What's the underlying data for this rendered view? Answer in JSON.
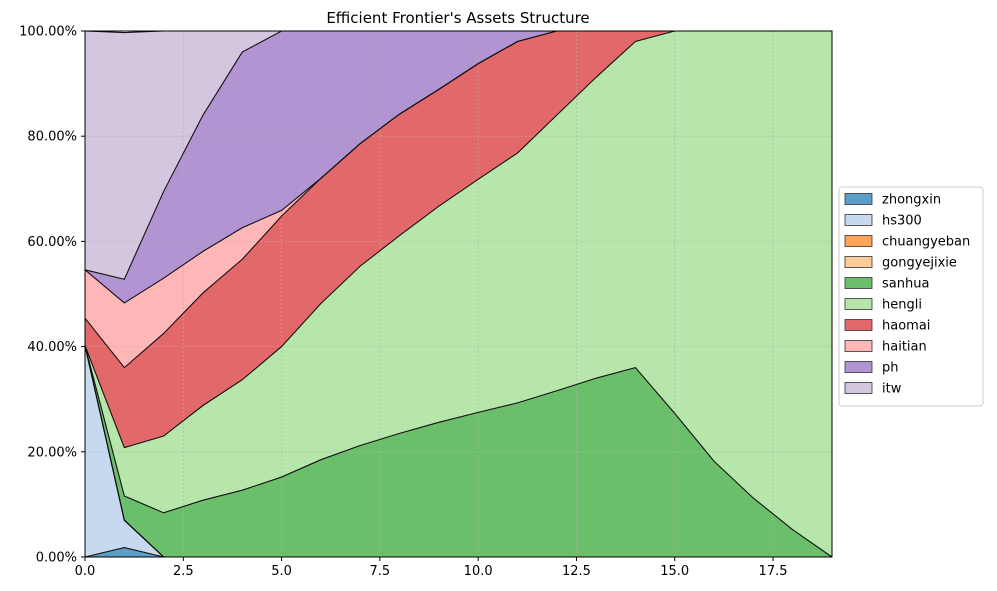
{
  "chart_data": {
    "type": "area",
    "stacked": true,
    "normalized": true,
    "title": "Efficient Frontier's Assets Structure",
    "xlabel": "",
    "ylabel": "",
    "xlim": [
      0,
      19
    ],
    "ylim": [
      0,
      100
    ],
    "x_ticks": [
      0.0,
      2.5,
      5.0,
      7.5,
      10.0,
      12.5,
      15.0,
      17.5
    ],
    "x_tick_labels": [
      "0.0",
      "2.5",
      "5.0",
      "7.5",
      "10.0",
      "12.5",
      "15.0",
      "17.5"
    ],
    "y_ticks": [
      0,
      20,
      40,
      60,
      80,
      100
    ],
    "y_tick_labels": [
      "0.00%",
      "20.00%",
      "40.00%",
      "60.00%",
      "80.00%",
      "100.00%"
    ],
    "grid": true,
    "legend_position": "right",
    "x": [
      0,
      1,
      2,
      3,
      4,
      5,
      6,
      7,
      8,
      9,
      10,
      11,
      12,
      13,
      14,
      15,
      16,
      17,
      18,
      19
    ],
    "series": [
      {
        "name": "zhongxin",
        "color": "#5b9ec9",
        "values": [
          0,
          1.8,
          0,
          0,
          0,
          0,
          0,
          0,
          0,
          0,
          0,
          0,
          0,
          0,
          0,
          0,
          0,
          0,
          0,
          0
        ]
      },
      {
        "name": "hs300",
        "color": "#c6d9ef",
        "values": [
          40.2,
          5.2,
          0,
          0,
          0,
          0,
          0,
          0,
          0,
          0,
          0,
          0,
          0,
          0,
          0,
          0,
          0,
          0,
          0,
          0
        ]
      },
      {
        "name": "chuangyeban",
        "color": "#ffa55a",
        "values": [
          0,
          0,
          0,
          0,
          0,
          0,
          0,
          0,
          0,
          0,
          0,
          0,
          0,
          0,
          0,
          0,
          0,
          0,
          0,
          0
        ]
      },
      {
        "name": "gongyejixie",
        "color": "#ffcc99",
        "values": [
          0,
          0,
          0,
          0,
          0,
          0,
          0,
          0,
          0,
          0,
          0,
          0,
          0,
          0,
          0,
          0,
          0,
          0,
          0,
          0
        ]
      },
      {
        "name": "sanhua",
        "color": "#6bbf6b",
        "values": [
          0,
          4.6,
          8.4,
          10.8,
          12.7,
          15.2,
          18.5,
          21.2,
          23.5,
          25.6,
          27.5,
          29.3,
          31.6,
          34.0,
          36.0,
          27.3,
          18.2,
          11.2,
          5.2,
          0
        ]
      },
      {
        "name": "hengli",
        "color": "#b7e6aa",
        "values": [
          0,
          9.2,
          14.6,
          18.0,
          21.0,
          24.8,
          29.7,
          34.1,
          37.6,
          41.1,
          44.3,
          47.5,
          52.4,
          57.2,
          62.0,
          72.7,
          81.8,
          88.8,
          94.8,
          100.0
        ]
      },
      {
        "name": "haomai",
        "color": "#e36869",
        "values": [
          5.2,
          15.2,
          19.5,
          21.4,
          22.9,
          24.8,
          23.8,
          23.3,
          23.1,
          22.2,
          22.0,
          21.2,
          16.0,
          8.8,
          2.0,
          0,
          0,
          0,
          0,
          0
        ]
      },
      {
        "name": "haitian",
        "color": "#ffb6b6",
        "values": [
          9.2,
          12.3,
          10.5,
          7.9,
          6.0,
          1.1,
          0,
          0,
          0,
          0,
          0,
          0,
          0,
          0,
          0,
          0,
          0,
          0,
          0,
          0
        ]
      },
      {
        "name": "ph",
        "color": "#b294d2",
        "values": [
          0,
          4.5,
          16.5,
          25.9,
          33.4,
          34.1,
          28.0,
          21.4,
          15.8,
          11.1,
          6.2,
          2.0,
          0,
          0,
          0,
          0,
          0,
          0,
          0,
          0
        ]
      },
      {
        "name": "itw",
        "color": "#d5c6e0",
        "values": [
          45.4,
          46.9,
          30.5,
          16.0,
          4.0,
          0,
          0,
          0,
          0,
          0,
          0,
          0,
          0,
          0,
          0,
          0,
          0,
          0,
          0,
          0
        ]
      }
    ]
  }
}
